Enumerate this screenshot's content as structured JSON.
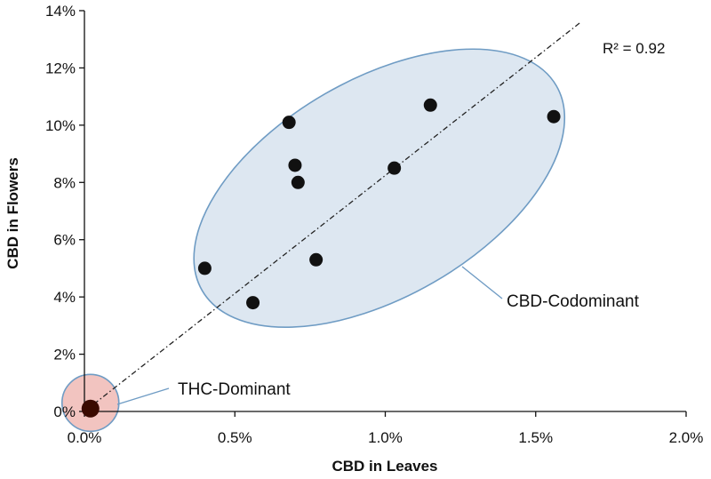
{
  "chart_data": {
    "type": "scatter",
    "title": "",
    "xlabel": "CBD in Leaves",
    "ylabel": "CBD in Flowers",
    "xlim": [
      0,
      2.0
    ],
    "ylim": [
      0,
      14
    ],
    "xticks": [
      0,
      0.5,
      1.0,
      1.5,
      2.0
    ],
    "xtick_labels": [
      "0.0%",
      "0.5%",
      "1.0%",
      "1.5%",
      "2.0%"
    ],
    "yticks": [
      0,
      2,
      4,
      6,
      8,
      10,
      12,
      14
    ],
    "ytick_labels": [
      "0%",
      "2%",
      "4%",
      "6%",
      "8%",
      "10%",
      "12%",
      "14%"
    ],
    "grid": false,
    "series": [
      {
        "name": "",
        "points": [
          {
            "x": 0.4,
            "y": 5.0
          },
          {
            "x": 0.56,
            "y": 3.8
          },
          {
            "x": 0.68,
            "y": 10.1
          },
          {
            "x": 0.7,
            "y": 8.6
          },
          {
            "x": 0.71,
            "y": 8.0
          },
          {
            "x": 0.77,
            "y": 5.3
          },
          {
            "x": 1.03,
            "y": 8.5
          },
          {
            "x": 1.15,
            "y": 10.7
          },
          {
            "x": 1.56,
            "y": 10.3
          },
          {
            "x": 0.02,
            "y": 0.1
          }
        ]
      }
    ],
    "trendline": {
      "style": "dash-dot",
      "from": {
        "x": 0.0,
        "y": 0.0
      },
      "to": {
        "x": 1.65,
        "y": 13.6
      },
      "r_squared_label": "R² = 0.92"
    },
    "regions": [
      {
        "label": "CBD-Codominant",
        "fill": "#dde7f1",
        "stroke": "#6f9cc4",
        "center": {
          "x": 0.98,
          "y": 7.8
        },
        "rx": 0.68,
        "ry": 3.8,
        "rotation_deg": -30
      },
      {
        "label": "THC-Dominant",
        "fill": "#f2c4c0",
        "stroke": "#6f9cc4",
        "center": {
          "x": 0.02,
          "y": 0.3
        },
        "rx": 0.11,
        "ry": 1.0,
        "rotation_deg": 0
      }
    ],
    "colors": {
      "points": "#111111",
      "axis": "#111111",
      "trendline": "#222222",
      "callout": "#6f9cc4",
      "thc_point": "#3a0a00"
    }
  }
}
